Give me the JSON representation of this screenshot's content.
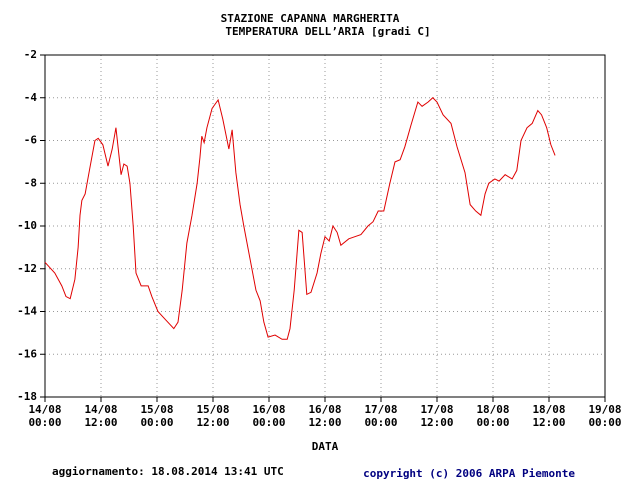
{
  "chart_data": {
    "type": "line",
    "title": "STAZIONE CAPANNA MARGHERITA",
    "subtitle": "TEMPERATURA DELL’ARIA [gradi C]",
    "x_label": "DATA",
    "footer_left": "aggiornamento: 18.08.2014 13:41 UTC",
    "footer_right": "copyright (c) 2006 ARPA Piemonte",
    "grid": true,
    "x": [
      0,
      2.1,
      3.6,
      4.5,
      5.4,
      6.4,
      7.1,
      7.5,
      7.9,
      8.6,
      9.6,
      10.7,
      11.4,
      12.4,
      13.5,
      14.4,
      15.2,
      16.3,
      16.9,
      17.6,
      18.2,
      18.9,
      19.5,
      20.6,
      22.1,
      22.9,
      24.2,
      25.9,
      27.6,
      28.5,
      29.4,
      30.4,
      31.5,
      32.6,
      33.2,
      33.6,
      34.1,
      34.7,
      35.8,
      37.1,
      38.1,
      39.4,
      40.1,
      40.9,
      41.8,
      42.6,
      43.9,
      45.2,
      46.1,
      46.9,
      47.8,
      49.3,
      50.8,
      51.9,
      52.5,
      53.4,
      54.4,
      55.1,
      56.1,
      57,
      58.3,
      59.1,
      60,
      60.9,
      61.7,
      62.6,
      63.4,
      65.1,
      66.4,
      67.7,
      69.2,
      70.3,
      71.4,
      72.6,
      73.9,
      75,
      76.1,
      77.1,
      78.4,
      79.9,
      80.8,
      82.1,
      83.1,
      84,
      85.3,
      87,
      88.3,
      90,
      91.1,
      92.3,
      93.4,
      94.3,
      95.1,
      96.4,
      97.3,
      98.6,
      100.1,
      101.1,
      102,
      103.3,
      104.4,
      105.6,
      106.4,
      107.5,
      108.4,
      109.3
    ],
    "series": [
      {
        "name": "Temperatura",
        "color": "#e00000",
        "values": [
          -11.7,
          -12.2,
          -12.8,
          -13.3,
          -13.4,
          -12.5,
          -11,
          -9.5,
          -8.8,
          -8.5,
          -7.3,
          -6,
          -5.9,
          -6.2,
          -7.2,
          -6.4,
          -5.4,
          -7.6,
          -7.1,
          -7.2,
          -8,
          -10,
          -12.2,
          -12.8,
          -12.8,
          -13.3,
          -14,
          -14.4,
          -14.8,
          -14.5,
          -13,
          -10.8,
          -9.5,
          -8,
          -6.8,
          -5.8,
          -6.1,
          -5.4,
          -4.5,
          -4.1,
          -5,
          -6.4,
          -5.5,
          -7.5,
          -9,
          -10,
          -11.5,
          -13,
          -13.5,
          -14.5,
          -15.2,
          -15.1,
          -15.3,
          -15.3,
          -14.8,
          -13,
          -10.2,
          -10.3,
          -13.2,
          -13.1,
          -12.2,
          -11.3,
          -10.5,
          -10.7,
          -10,
          -10.3,
          -10.9,
          -10.6,
          -10.5,
          -10.4,
          -10,
          -9.8,
          -9.3,
          -9.3,
          -8,
          -7,
          -6.9,
          -6.3,
          -5.3,
          -4.2,
          -4.4,
          -4.2,
          -4,
          -4.2,
          -4.8,
          -5.2,
          -6.3,
          -7.5,
          -9,
          -9.3,
          -9.5,
          -8.5,
          -8,
          -7.8,
          -7.9,
          -7.6,
          -7.8,
          -7.4,
          -6,
          -5.4,
          -5.2,
          -4.6,
          -4.8,
          -5.4,
          -6.2,
          -6.7
        ]
      }
    ],
    "xlim": [
      0,
      120
    ],
    "xticks": [
      {
        "value": 0,
        "label": "14/08\n00:00"
      },
      {
        "value": 12,
        "label": "14/08\n12:00"
      },
      {
        "value": 24,
        "label": "15/08\n00:00"
      },
      {
        "value": 36,
        "label": "15/08\n12:00"
      },
      {
        "value": 48,
        "label": "16/08\n00:00"
      },
      {
        "value": 60,
        "label": "16/08\n12:00"
      },
      {
        "value": 72,
        "label": "17/08\n00:00"
      },
      {
        "value": 84,
        "label": "17/08\n12:00"
      },
      {
        "value": 96,
        "label": "18/08\n00:00"
      },
      {
        "value": 108,
        "label": "18/08\n12:00"
      },
      {
        "value": 120,
        "label": "19/08\n00:00"
      }
    ],
    "ylim": [
      -18,
      -2
    ],
    "yticks": [
      -18,
      -16,
      -14,
      -12,
      -10,
      -8,
      -6,
      -4,
      -2
    ]
  }
}
